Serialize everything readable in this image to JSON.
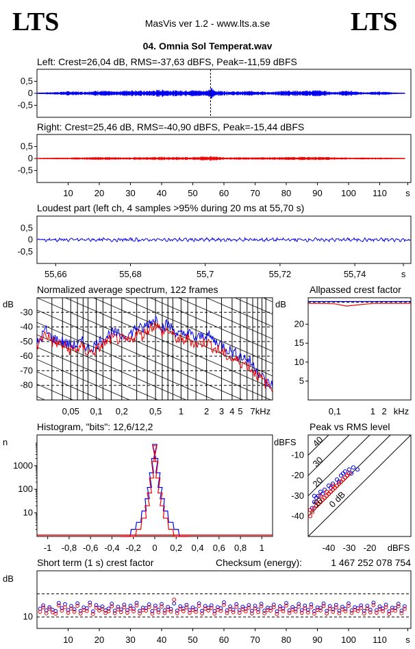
{
  "header": {
    "logo_left": "LTS",
    "logo_right": "LTS",
    "app_title": "MasVis ver 1.2 - www.lts.a.se",
    "file_name": "04. Omnia Sol Temperat.wav"
  },
  "colors": {
    "left": "#0000ee",
    "right": "#ee0000"
  },
  "chart_data": [
    {
      "id": "left-waveform",
      "type": "line",
      "title": "Left: Crest=26,04 dB, RMS=-37,63 dBFS, Peak=-11,59 dBFS",
      "crest_db": 26.04,
      "rms_dbfs": -37.63,
      "peak_dbfs": -11.59,
      "yticks": [
        "0,5",
        "0",
        "-0,5"
      ],
      "ylim": [
        -1,
        1
      ],
      "envelope_x": [
        0,
        5,
        10,
        15,
        20,
        25,
        30,
        35,
        40,
        45,
        50,
        55,
        56,
        57,
        60,
        65,
        70,
        75,
        80,
        85,
        90,
        95,
        100,
        105,
        110,
        115,
        118
      ],
      "envelope_y": [
        0.03,
        0.05,
        0.09,
        0.07,
        0.12,
        0.08,
        0.14,
        0.1,
        0.16,
        0.12,
        0.14,
        0.12,
        0.25,
        0.12,
        0.1,
        0.08,
        0.11,
        0.05,
        0.13,
        0.1,
        0.14,
        0.06,
        0.12,
        0.04,
        0.08,
        0.03,
        0.02
      ],
      "marker_x": 55.7
    },
    {
      "id": "right-waveform",
      "type": "line",
      "title": "Right: Crest=25,46 dB, RMS=-40,90 dBFS, Peak=-15,44 dBFS",
      "crest_db": 25.46,
      "rms_dbfs": -40.9,
      "peak_dbfs": -15.44,
      "yticks": [
        "0,5",
        "0",
        "-0,5"
      ],
      "ylim": [
        -1,
        1
      ],
      "envelope_x": [
        0,
        10,
        20,
        30,
        40,
        50,
        56,
        60,
        70,
        80,
        90,
        100,
        110,
        118
      ],
      "envelope_y": [
        0.02,
        0.04,
        0.06,
        0.05,
        0.07,
        0.06,
        0.1,
        0.05,
        0.05,
        0.06,
        0.07,
        0.04,
        0.04,
        0.02
      ],
      "xticks": [
        "10",
        "20",
        "30",
        "40",
        "50",
        "60",
        "70",
        "80",
        "90",
        "100",
        "110",
        "s"
      ],
      "xlim": [
        0,
        120
      ]
    },
    {
      "id": "loudest-part",
      "type": "line",
      "title": "Loudest part (left  ch, 4 samples >95% during 20 ms at 55,70 s)",
      "yticks": [
        "0,5",
        "0",
        "-0,5"
      ],
      "ylim": [
        -1,
        1
      ],
      "xticks": [
        "55,66",
        "55,68",
        "55,7",
        "55,72",
        "55,74",
        "s"
      ],
      "xlim": [
        55.655,
        55.755
      ],
      "amplitude": 0.07
    },
    {
      "id": "average-spectrum",
      "type": "line",
      "title": "Normalized average spectrum, 122 frames",
      "ylabel": "dB",
      "yticks": [
        "-30",
        "-40",
        "-50",
        "-60",
        "-70",
        "-80"
      ],
      "ylim": [
        -90,
        -20
      ],
      "xlabel": "kHz",
      "xticks": [
        "0,05",
        "0,1",
        "0,2",
        "0,5",
        "1",
        "2",
        "3",
        "4",
        "5",
        "7"
      ],
      "xlim_khz": [
        0.02,
        12
      ],
      "x_khz": [
        0.02,
        0.025,
        0.03,
        0.04,
        0.05,
        0.06,
        0.07,
        0.08,
        0.1,
        0.12,
        0.15,
        0.2,
        0.25,
        0.3,
        0.35,
        0.4,
        0.5,
        0.6,
        0.7,
        0.8,
        1,
        1.2,
        1.5,
        2,
        2.5,
        3,
        3.5,
        4,
        5,
        6,
        7,
        8,
        9,
        10,
        12
      ],
      "series": [
        {
          "name": "left",
          "values": [
            -52,
            -42,
            -48,
            -50,
            -53,
            -52,
            -50,
            -55,
            -52,
            -48,
            -44,
            -46,
            -45,
            -40,
            -42,
            -38,
            -34,
            -40,
            -38,
            -42,
            -46,
            -44,
            -48,
            -45,
            -50,
            -52,
            -55,
            -57,
            -60,
            -62,
            -66,
            -70,
            -74,
            -78,
            -80
          ]
        },
        {
          "name": "right",
          "values": [
            -53,
            -44,
            -50,
            -53,
            -56,
            -55,
            -54,
            -58,
            -56,
            -52,
            -48,
            -49,
            -50,
            -44,
            -46,
            -42,
            -38,
            -44,
            -42,
            -46,
            -50,
            -48,
            -52,
            -50,
            -55,
            -57,
            -60,
            -62,
            -64,
            -66,
            -70,
            -73,
            -76,
            -79,
            -81
          ]
        }
      ]
    },
    {
      "id": "allpassed-crest",
      "type": "line",
      "title": "Allpassed crest factor",
      "ylabel": "dB",
      "yticks": [
        "20",
        "15",
        "10",
        "5"
      ],
      "ylim": [
        0,
        27
      ],
      "xticks": [
        "0,1",
        "1",
        "2",
        "kHz"
      ],
      "xlim_khz": [
        0.02,
        10
      ],
      "x_khz": [
        0.02,
        0.05,
        0.1,
        0.2,
        0.5,
        1,
        2,
        5,
        10
      ],
      "series": [
        {
          "name": "left",
          "values": [
            26,
            26,
            26,
            26,
            26,
            26,
            26,
            26,
            26
          ]
        },
        {
          "name": "right",
          "values": [
            25.5,
            25.5,
            25.4,
            24.8,
            25.2,
            25.5,
            25.5,
            25.5,
            25.5
          ]
        }
      ]
    },
    {
      "id": "histogram",
      "type": "line",
      "title": "Histogram, \"bits\": 12,6/12,2",
      "ylabel": "n",
      "yticks": [
        "1000",
        "100",
        "10"
      ],
      "ylim": [
        1,
        20000
      ],
      "xticks": [
        "-1",
        "-0,8",
        "-0,6",
        "-0,4",
        "-0,2",
        "0",
        "0,2",
        "0,4",
        "0,6",
        "0,8",
        "1"
      ],
      "xlim": [
        -1.1,
        1.1
      ],
      "x": [
        -0.3,
        -0.25,
        -0.2,
        -0.15,
        -0.1,
        -0.07,
        -0.05,
        -0.03,
        -0.01,
        0,
        0.01,
        0.03,
        0.05,
        0.07,
        0.1,
        0.15,
        0.2,
        0.25,
        0.3
      ],
      "series": [
        {
          "name": "left",
          "values": [
            1,
            1,
            2,
            4,
            12,
            40,
            120,
            500,
            2000,
            8000,
            2000,
            500,
            120,
            40,
            12,
            4,
            2,
            1,
            1
          ]
        },
        {
          "name": "right",
          "values": [
            1,
            1,
            1,
            2,
            6,
            20,
            70,
            300,
            1500,
            7000,
            1500,
            300,
            70,
            20,
            6,
            2,
            1,
            1,
            1
          ]
        }
      ]
    },
    {
      "id": "peak-vs-rms",
      "type": "scatter",
      "title": "Peak vs RMS level",
      "ylabel": "dBFS",
      "yticks": [
        "-10",
        "-20",
        "-30",
        "-40"
      ],
      "ylim": [
        -50,
        0
      ],
      "xlabel": "dBFS",
      "xticks": [
        "-40",
        "-30",
        "-20"
      ],
      "xlim": [
        -50,
        0
      ],
      "diag_labels": [
        "40",
        "30",
        "20",
        "10",
        "0 dB"
      ],
      "series": [
        {
          "name": "left",
          "points": [
            [
              -48,
              -36
            ],
            [
              -47,
              -33
            ],
            [
              -46,
              -31
            ],
            [
              -45,
              -30
            ],
            [
              -44,
              -28
            ],
            [
              -42,
              -27
            ],
            [
              -40,
              -25
            ],
            [
              -38,
              -24
            ],
            [
              -36,
              -22
            ],
            [
              -34,
              -20
            ],
            [
              -33,
              -19
            ],
            [
              -32,
              -18
            ],
            [
              -31,
              -20
            ],
            [
              -30,
              -17
            ],
            [
              -29,
              -19
            ],
            [
              -28,
              -16
            ],
            [
              -47,
              -30
            ],
            [
              -43,
              -29
            ],
            [
              -39,
              -26
            ],
            [
              -35,
              -23
            ],
            [
              -26,
              -17
            ]
          ]
        },
        {
          "name": "right",
          "points": [
            [
              -49,
              -40
            ],
            [
              -48,
              -38
            ],
            [
              -47,
              -36
            ],
            [
              -46,
              -35
            ],
            [
              -45,
              -34
            ],
            [
              -44,
              -33
            ],
            [
              -43,
              -32
            ],
            [
              -42,
              -31
            ],
            [
              -41,
              -30
            ],
            [
              -40,
              -29
            ],
            [
              -39,
              -28
            ],
            [
              -38,
              -27
            ],
            [
              -37,
              -26
            ],
            [
              -36,
              -25
            ],
            [
              -35,
              -24
            ],
            [
              -34,
              -23
            ],
            [
              -33,
              -22
            ],
            [
              -32,
              -21
            ],
            [
              -31,
              -20
            ],
            [
              -30,
              -19
            ],
            [
              -49,
              -37
            ],
            [
              -46,
              -33
            ],
            [
              -44,
              -30
            ],
            [
              -41,
              -28
            ],
            [
              -38,
              -25
            ]
          ]
        }
      ]
    },
    {
      "id": "short-term-crest",
      "type": "scatter",
      "title": "Short term (1 s) crest factor",
      "checksum_label": "Checksum (energy):",
      "checksum_value": "1 467 252 078 754",
      "ylabel": "dB",
      "yticks": [
        "10"
      ],
      "ylim": [
        5,
        30
      ],
      "xticks": [
        "10",
        "20",
        "30",
        "40",
        "50",
        "60",
        "70",
        "80",
        "90",
        "100",
        "110",
        "s"
      ],
      "xlim": [
        0,
        120
      ],
      "series": [
        {
          "name": "left",
          "values": [
            13.5,
            15.0,
            12.8,
            14.2,
            13.1,
            12.5,
            16.0,
            13.8,
            15.5,
            12.9,
            14.7,
            13.3,
            15.9,
            12.6,
            14.1,
            13.7,
            16.2,
            12.4,
            15.1,
            13.9,
            14.5,
            12.8,
            13.6,
            15.7,
            12.7,
            14.4,
            13.2,
            15.3,
            12.9,
            14.8,
            13.5,
            16.1,
            12.6,
            14.0,
            13.8,
            15.4,
            12.5,
            14.9,
            13.1,
            15.6,
            12.8,
            14.3,
            13.4,
            15.8,
            12.7,
            14.6,
            13.6,
            15.2,
            12.9,
            14.1,
            13.3,
            15.9,
            12.6,
            14.7,
            13.9,
            15.0,
            12.5,
            14.2,
            13.7,
            16.3,
            12.8,
            14.5,
            13.1,
            15.5,
            12.9,
            14.4,
            13.5,
            15.1,
            12.6,
            14.8,
            13.2,
            15.7,
            12.7,
            14.0,
            13.8,
            15.3,
            12.4,
            14.6,
            13.6,
            16.0,
            12.8,
            14.3,
            13.4,
            15.6,
            12.9,
            14.9,
            13.0,
            15.4,
            12.5,
            14.1,
            13.9,
            15.8,
            12.6,
            14.7,
            13.3,
            15.2,
            12.7,
            14.4,
            13.5,
            15.9,
            12.8,
            14.2,
            13.7,
            15.0,
            12.6,
            14.8,
            13.1,
            16.2,
            12.9,
            14.5,
            13.6,
            15.3,
            12.4,
            14.0,
            13.8,
            15.7,
            12.7,
            14.6
          ]
        },
        {
          "name": "right",
          "values": [
            12.2,
            14.1,
            11.6,
            13.5,
            12.0,
            11.4,
            15.0,
            12.7,
            14.2,
            11.8,
            13.6,
            12.2,
            14.8,
            11.5,
            13.0,
            12.6,
            15.1,
            11.3,
            14.0,
            12.8,
            13.4,
            11.7,
            12.5,
            14.6,
            11.6,
            13.3,
            12.1,
            14.2,
            11.8,
            13.7,
            12.4,
            15.0,
            11.5,
            12.9,
            12.7,
            14.3,
            11.4,
            13.8,
            12.0,
            14.5,
            11.7,
            13.2,
            12.3,
            17.5,
            11.6,
            13.5,
            12.5,
            14.1,
            11.8,
            13.0,
            12.2,
            14.8,
            11.5,
            13.6,
            12.8,
            13.9,
            11.4,
            13.1,
            12.6,
            15.2,
            11.7,
            13.4,
            12.0,
            14.4,
            11.8,
            13.3,
            12.4,
            14.0,
            11.5,
            13.7,
            12.1,
            14.6,
            11.6,
            12.9,
            12.7,
            14.2,
            11.3,
            13.5,
            12.5,
            14.9,
            11.7,
            13.2,
            12.3,
            14.5,
            11.8,
            13.8,
            11.9,
            14.3,
            11.4,
            13.0,
            12.8,
            14.7,
            11.5,
            13.6,
            12.2,
            14.1,
            11.6,
            13.3,
            12.4,
            14.8,
            11.7,
            13.1,
            12.6,
            13.9,
            11.5,
            13.7,
            12.0,
            15.1,
            11.8,
            13.4,
            12.5,
            14.2,
            11.3,
            12.9,
            12.7,
            14.6,
            11.6,
            13.5
          ]
        }
      ]
    }
  ]
}
